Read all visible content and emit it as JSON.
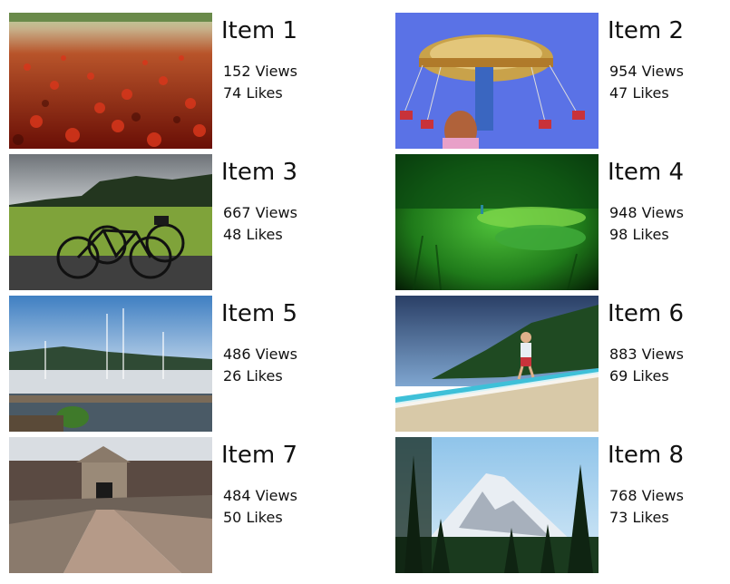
{
  "items": [
    {
      "title": "Item 1",
      "views": "152 Views",
      "likes": "74 Likes",
      "image": "red-leaves-path-photo"
    },
    {
      "title": "Item 2",
      "views": "954 Views",
      "likes": "47 Likes",
      "image": "swing-carousel-photo"
    },
    {
      "title": "Item 3",
      "views": "667 Views",
      "likes": "48 Likes",
      "image": "bicycles-field-photo"
    },
    {
      "title": "Item 4",
      "views": "948 Views",
      "likes": "98 Likes",
      "image": "green-pond-photo"
    },
    {
      "title": "Item 5",
      "views": "486 Views",
      "likes": "26 Likes",
      "image": "marina-boats-photo"
    },
    {
      "title": "Item 6",
      "views": "883 Views",
      "likes": "69 Likes",
      "image": "beach-child-photo"
    },
    {
      "title": "Item 7",
      "views": "484 Views",
      "likes": "50 Likes",
      "image": "stone-fort-gate-photo"
    },
    {
      "title": "Item 8",
      "views": "768 Views",
      "likes": "73 Likes",
      "image": "snowy-mountain-photo"
    }
  ]
}
